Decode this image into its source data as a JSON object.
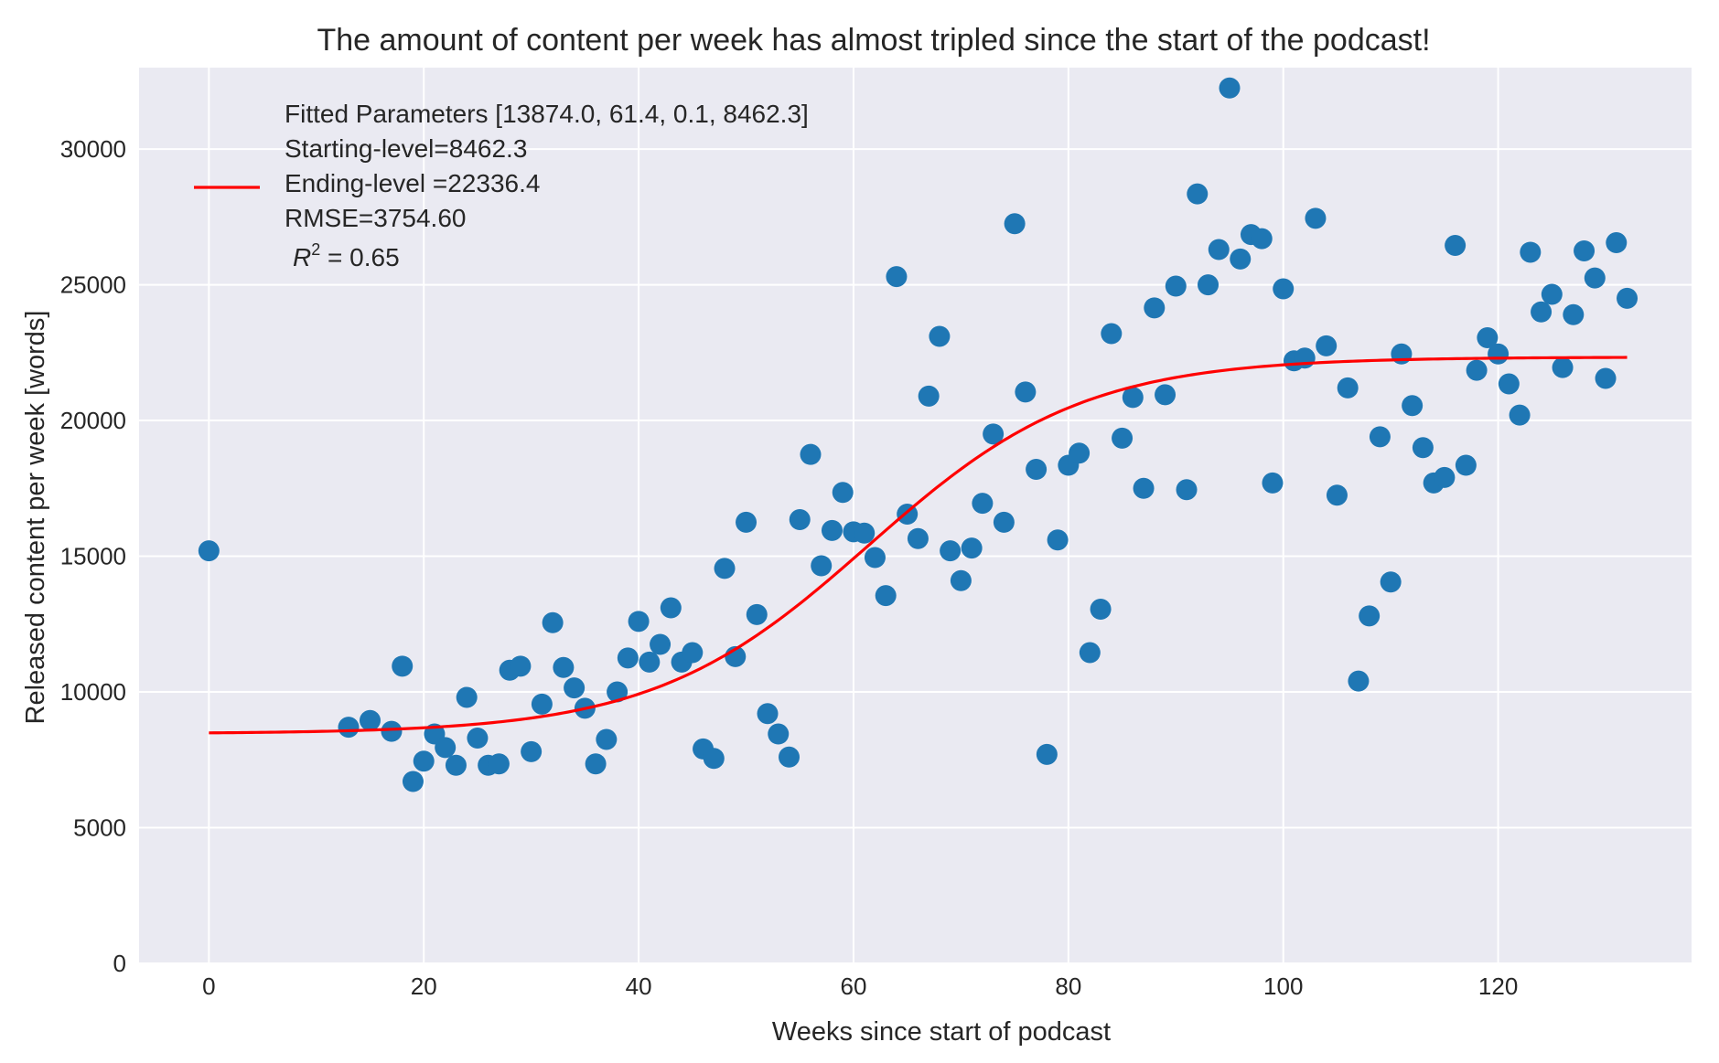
{
  "chart_data": {
    "type": "scatter",
    "title": "The amount of content per week has almost tripled since the start of the podcast!",
    "xlabel": "Weeks since start of podcast",
    "ylabel": "Released content per week [words]",
    "xlim": [
      -6.5,
      138
    ],
    "ylim": [
      0,
      33000
    ],
    "xticks": [
      0,
      20,
      40,
      60,
      80,
      100,
      120
    ],
    "yticks": [
      0,
      5000,
      10000,
      15000,
      20000,
      25000,
      30000
    ],
    "grid": true,
    "legend_placement": "top-left",
    "colors": {
      "points": "#1f77b4",
      "fit": "#ff0000",
      "background": "#eaeaf2",
      "grid": "#ffffff"
    },
    "legend": {
      "lines": [
        "Fitted Parameters [13874.0, 61.4, 0.1, 8462.3]",
        "Starting-level=8462.3",
        "Ending-level =22336.4",
        "RMSE=3754.60"
      ],
      "r2_prefix": "R",
      "r2_sup": "2",
      "r2_suffix": " = 0.65"
    },
    "fit": {
      "A": 13874.0,
      "x0": 61.4,
      "k": 0.1,
      "base": 8462.3,
      "x_start": 0,
      "x_end": 132
    },
    "series": [
      {
        "type": "scatter",
        "points": [
          [
            0,
            15200
          ],
          [
            13,
            8700
          ],
          [
            15,
            8950
          ],
          [
            17,
            8550
          ],
          [
            18,
            10950
          ],
          [
            19,
            6700
          ],
          [
            20,
            7450
          ],
          [
            21,
            8450
          ],
          [
            22,
            7950
          ],
          [
            23,
            7300
          ],
          [
            24,
            9800
          ],
          [
            25,
            8300
          ],
          [
            26,
            7300
          ],
          [
            27,
            7350
          ],
          [
            28,
            10800
          ],
          [
            29,
            10950
          ],
          [
            30,
            7800
          ],
          [
            31,
            9550
          ],
          [
            32,
            12550
          ],
          [
            33,
            10900
          ],
          [
            34,
            10150
          ],
          [
            35,
            9400
          ],
          [
            36,
            7350
          ],
          [
            37,
            8250
          ],
          [
            38,
            10000
          ],
          [
            39,
            11250
          ],
          [
            40,
            12600
          ],
          [
            41,
            11100
          ],
          [
            42,
            11750
          ],
          [
            43,
            13100
          ],
          [
            44,
            11100
          ],
          [
            45,
            11450
          ],
          [
            46,
            7900
          ],
          [
            47,
            7550
          ],
          [
            48,
            14550
          ],
          [
            49,
            11300
          ],
          [
            50,
            16250
          ],
          [
            51,
            12850
          ],
          [
            52,
            9200
          ],
          [
            53,
            8450
          ],
          [
            54,
            7600
          ],
          [
            55,
            16350
          ],
          [
            56,
            18750
          ],
          [
            57,
            14650
          ],
          [
            58,
            15950
          ],
          [
            59,
            17350
          ],
          [
            60,
            15900
          ],
          [
            61,
            15850
          ],
          [
            62,
            14950
          ],
          [
            63,
            13550
          ],
          [
            64,
            25300
          ],
          [
            65,
            16550
          ],
          [
            66,
            15650
          ],
          [
            67,
            20900
          ],
          [
            68,
            23100
          ],
          [
            69,
            15200
          ],
          [
            70,
            14100
          ],
          [
            71,
            15300
          ],
          [
            72,
            16950
          ],
          [
            73,
            19500
          ],
          [
            74,
            16250
          ],
          [
            75,
            27250
          ],
          [
            76,
            21050
          ],
          [
            77,
            18200
          ],
          [
            78,
            7700
          ],
          [
            79,
            15600
          ],
          [
            80,
            18350
          ],
          [
            81,
            18800
          ],
          [
            82,
            11450
          ],
          [
            83,
            13050
          ],
          [
            84,
            23200
          ],
          [
            85,
            19350
          ],
          [
            86,
            20850
          ],
          [
            87,
            17500
          ],
          [
            88,
            24150
          ],
          [
            89,
            20950
          ],
          [
            90,
            24950
          ],
          [
            91,
            17450
          ],
          [
            92,
            28350
          ],
          [
            93,
            25000
          ],
          [
            94,
            26300
          ],
          [
            95,
            32250
          ],
          [
            96,
            25950
          ],
          [
            97,
            26850
          ],
          [
            98,
            26700
          ],
          [
            99,
            17700
          ],
          [
            100,
            24850
          ],
          [
            101,
            22200
          ],
          [
            102,
            22300
          ],
          [
            103,
            27450
          ],
          [
            104,
            22750
          ],
          [
            105,
            17250
          ],
          [
            106,
            21200
          ],
          [
            107,
            10400
          ],
          [
            108,
            12800
          ],
          [
            109,
            19400
          ],
          [
            110,
            14050
          ],
          [
            111,
            22450
          ],
          [
            112,
            20550
          ],
          [
            113,
            19000
          ],
          [
            114,
            17700
          ],
          [
            115,
            17900
          ],
          [
            116,
            26450
          ],
          [
            117,
            18350
          ],
          [
            118,
            21850
          ],
          [
            119,
            23050
          ],
          [
            120,
            22450
          ],
          [
            121,
            21350
          ],
          [
            122,
            20200
          ],
          [
            123,
            26200
          ],
          [
            124,
            24000
          ],
          [
            125,
            24650
          ],
          [
            126,
            21950
          ],
          [
            127,
            23900
          ],
          [
            128,
            26250
          ],
          [
            129,
            25250
          ],
          [
            130,
            21550
          ],
          [
            131,
            26550
          ],
          [
            132,
            24500
          ]
        ]
      }
    ]
  }
}
